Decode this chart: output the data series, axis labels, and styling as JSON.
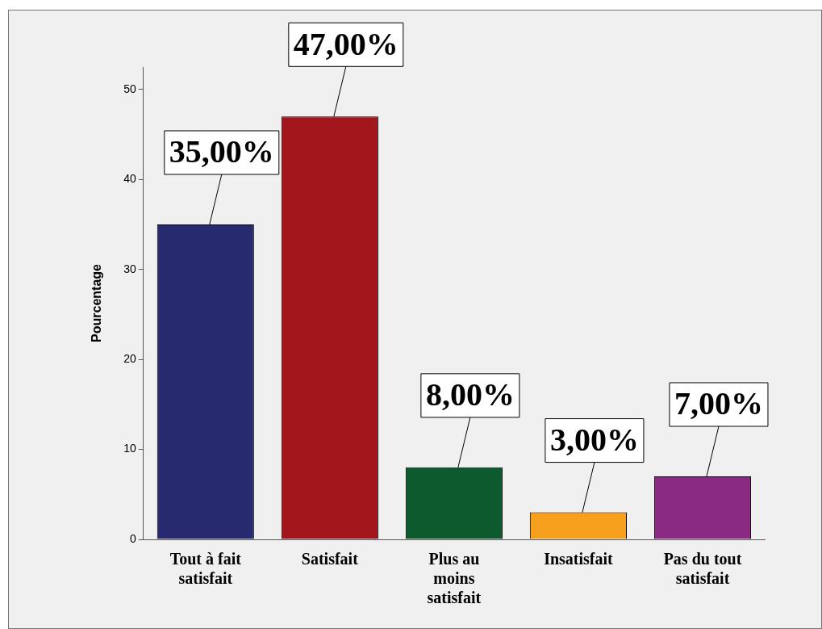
{
  "chart_data": {
    "type": "bar",
    "ylabel": "Pourcentage",
    "categories": [
      "Tout à fait satisfait",
      "Satisfait",
      "Plus au moins satisfait",
      "Insatisfait",
      "Pas du tout satisfait"
    ],
    "values": [
      35,
      47,
      8,
      3,
      7
    ],
    "colors": [
      "#272a6f",
      "#a3161b",
      "#0c5a2e",
      "#f6a01e",
      "#8a2a82"
    ],
    "value_labels": [
      "35,00%",
      "47,00%",
      "8,00%",
      "3,00%",
      "7,00%"
    ],
    "ylim": [
      0,
      52.5
    ],
    "yticks": [
      0,
      10,
      20,
      30,
      40,
      50
    ],
    "grid": false,
    "legend": false
  }
}
